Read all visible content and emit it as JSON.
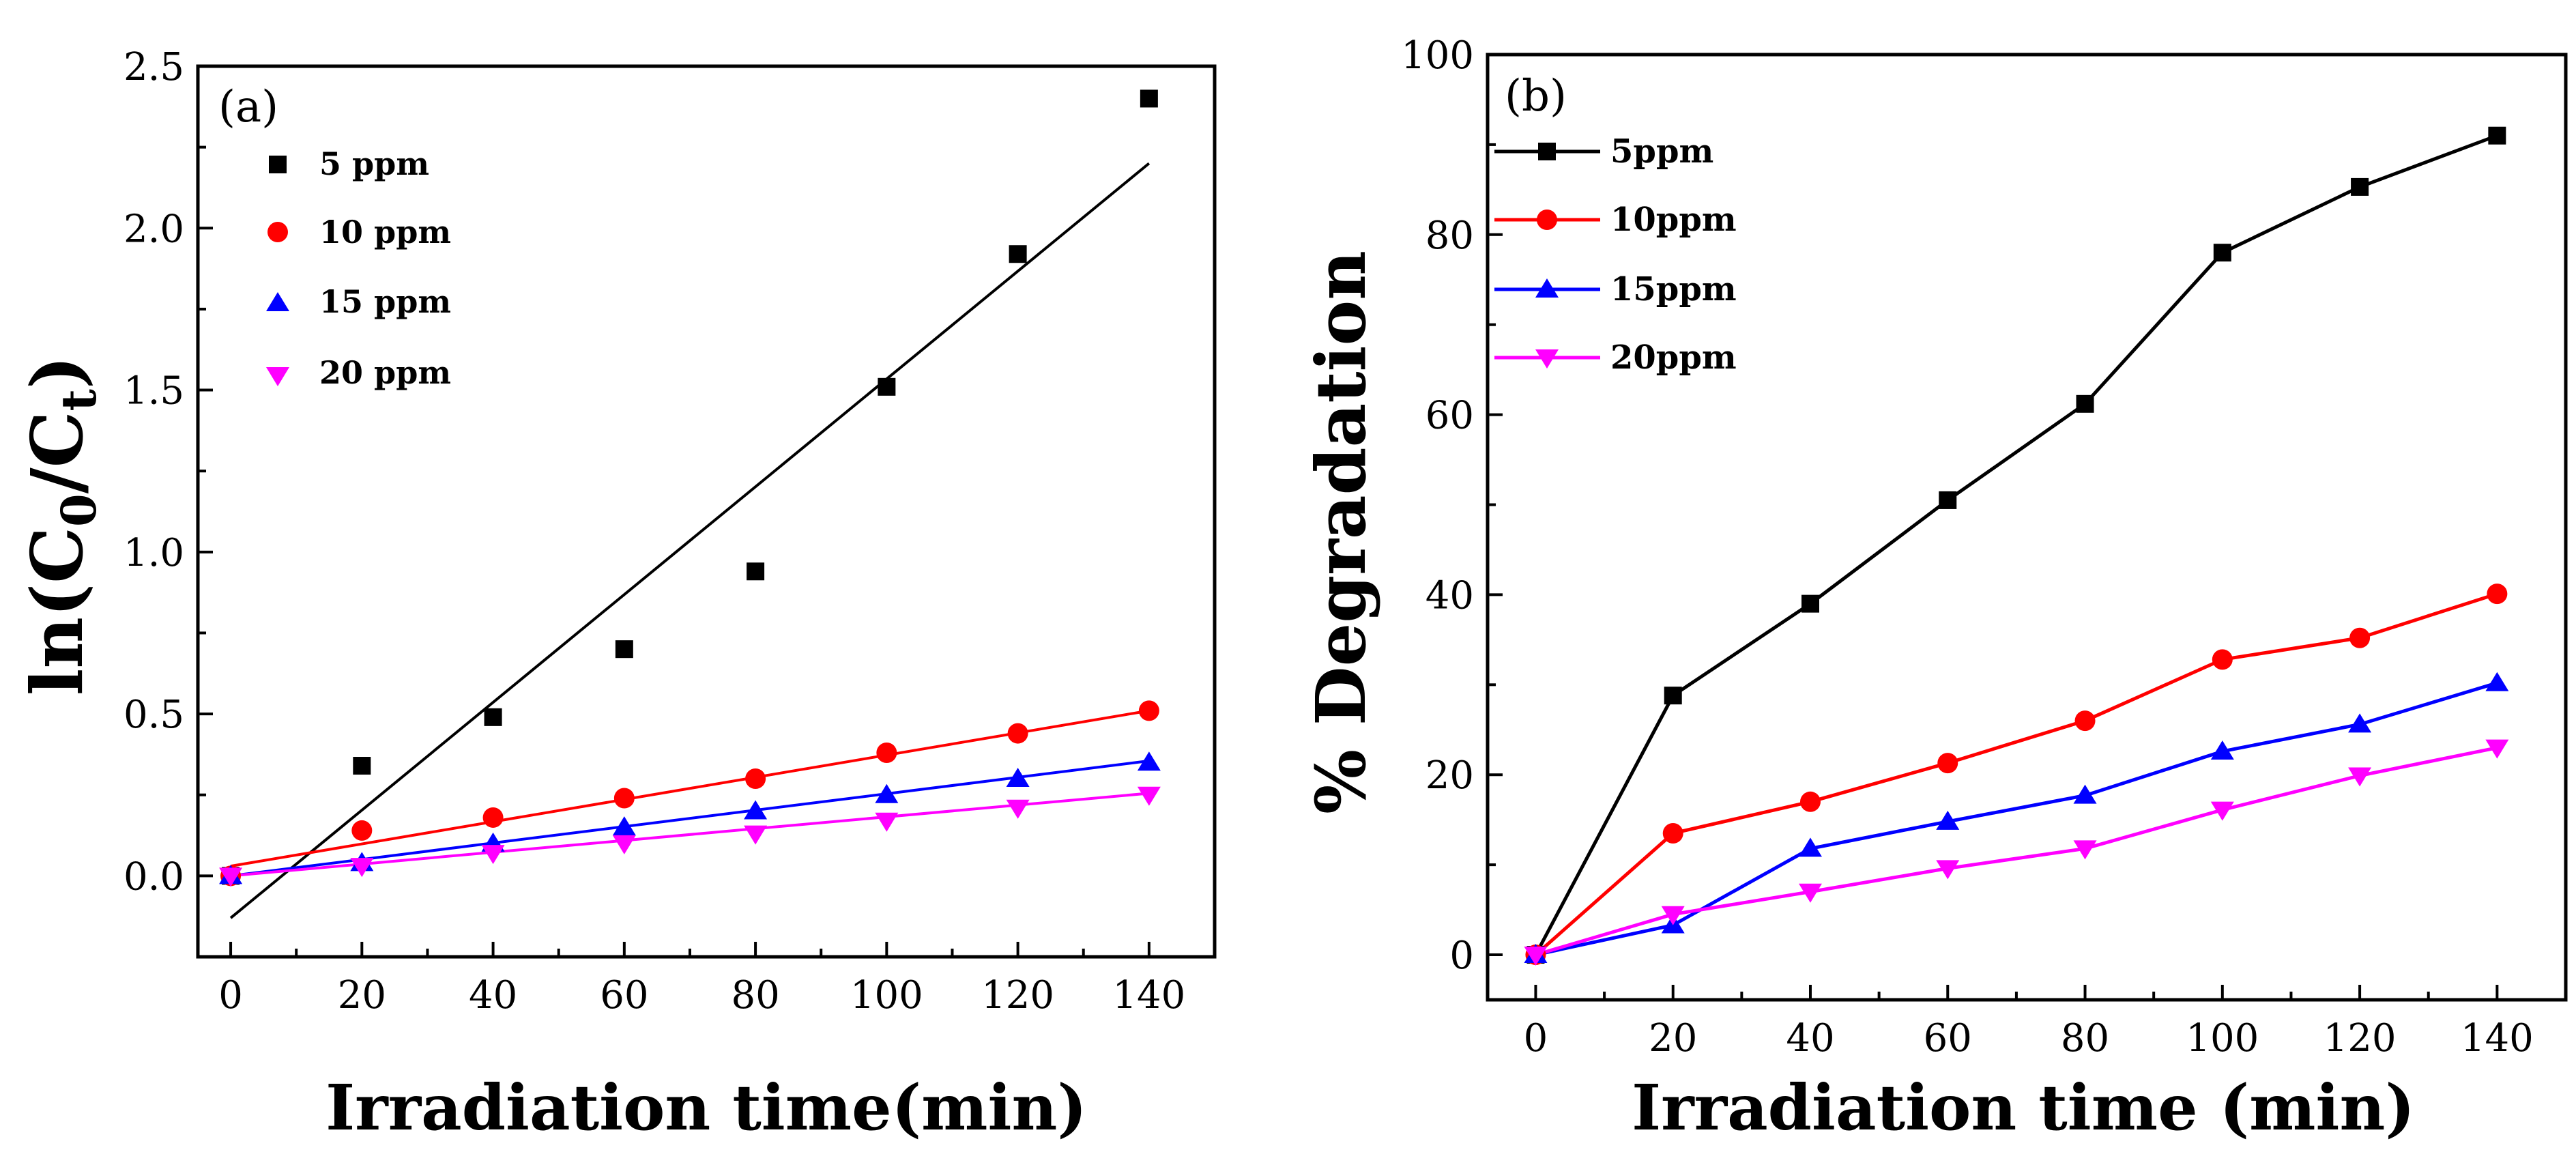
{
  "figure": "kinetics-and-degradation",
  "chart_data": [
    {
      "id": "a",
      "type": "scatter",
      "panel_label": "(a)",
      "xlabel": "Irradiation time(min)",
      "ylabel_main": "ln(C",
      "ylabel_sub1": "0",
      "ylabel_mid": "/C",
      "ylabel_sub2": "t",
      "ylabel_end": ")",
      "xlim": [
        -5,
        150
      ],
      "ylim": [
        -0.25,
        2.5
      ],
      "xticks": [
        0,
        20,
        40,
        60,
        80,
        100,
        120,
        140
      ],
      "xtick_labels": [
        "0",
        "20",
        "40",
        "60",
        "80",
        "100",
        "120",
        "140"
      ],
      "yticks": [
        0,
        0.5,
        1.0,
        1.5,
        2.0,
        2.5
      ],
      "ytick_labels": [
        "0.0",
        "0.5",
        "1.0",
        "1.5",
        "2.0",
        "2.5"
      ],
      "legend_position": "top-left",
      "x": [
        0,
        20,
        40,
        60,
        80,
        100,
        120,
        140
      ],
      "series": [
        {
          "name": "5 ppm",
          "color": "#000000",
          "marker": "square",
          "values": [
            0.0,
            0.34,
            0.49,
            0.7,
            0.94,
            1.51,
            1.92,
            2.4
          ],
          "fit": {
            "x0": 0,
            "y0": -0.13,
            "x1": 140,
            "y1": 2.2
          }
        },
        {
          "name": "10 ppm",
          "color": "#ff0000",
          "marker": "circle",
          "values": [
            0.0,
            0.14,
            0.18,
            0.24,
            0.3,
            0.38,
            0.44,
            0.51
          ],
          "fit": {
            "x0": 0,
            "y0": 0.03,
            "x1": 140,
            "y1": 0.51
          }
        },
        {
          "name": "15 ppm",
          "color": "#0000ff",
          "marker": "triangle-up",
          "values": [
            0.0,
            0.04,
            0.1,
            0.15,
            0.2,
            0.25,
            0.3,
            0.35
          ],
          "fit": {
            "x0": 0,
            "y0": 0.0,
            "x1": 140,
            "y1": 0.355
          }
        },
        {
          "name": "20 ppm",
          "color": "#ff00ff",
          "marker": "triangle-down",
          "values": [
            0.0,
            0.03,
            0.07,
            0.1,
            0.13,
            0.17,
            0.21,
            0.25
          ],
          "fit": {
            "x0": 0,
            "y0": 0.0,
            "x1": 140,
            "y1": 0.255
          }
        }
      ]
    },
    {
      "id": "b",
      "type": "line",
      "panel_label": "(b)",
      "xlabel": "Irradiation time (min)",
      "ylabel": "% Degradation",
      "xlim": [
        -7,
        150
      ],
      "ylim": [
        -5,
        100
      ],
      "xticks": [
        0,
        20,
        40,
        60,
        80,
        100,
        120,
        140
      ],
      "xtick_labels": [
        "0",
        "20",
        "40",
        "60",
        "80",
        "100",
        "120",
        "140"
      ],
      "yticks": [
        0,
        20,
        40,
        60,
        80,
        100
      ],
      "ytick_labels": [
        "0",
        "20",
        "40",
        "60",
        "80",
        "100"
      ],
      "legend_position": "top-left",
      "x": [
        0,
        20,
        40,
        60,
        80,
        100,
        120,
        140
      ],
      "series": [
        {
          "name": "5ppm",
          "color": "#000000",
          "marker": "square",
          "values": [
            0,
            28.8,
            39.0,
            50.5,
            61.2,
            78.0,
            85.3,
            91.0
          ]
        },
        {
          "name": "10ppm",
          "color": "#ff0000",
          "marker": "circle",
          "values": [
            0,
            13.5,
            17.0,
            21.3,
            26.0,
            32.8,
            35.2,
            40.1
          ]
        },
        {
          "name": "15ppm",
          "color": "#0000ff",
          "marker": "triangle-up",
          "values": [
            0,
            3.3,
            11.8,
            14.8,
            17.7,
            22.6,
            25.6,
            30.2
          ]
        },
        {
          "name": "20ppm",
          "color": "#ff00ff",
          "marker": "triangle-down",
          "values": [
            0,
            4.5,
            7.0,
            9.6,
            11.8,
            16.1,
            19.9,
            23.0
          ]
        }
      ]
    }
  ]
}
